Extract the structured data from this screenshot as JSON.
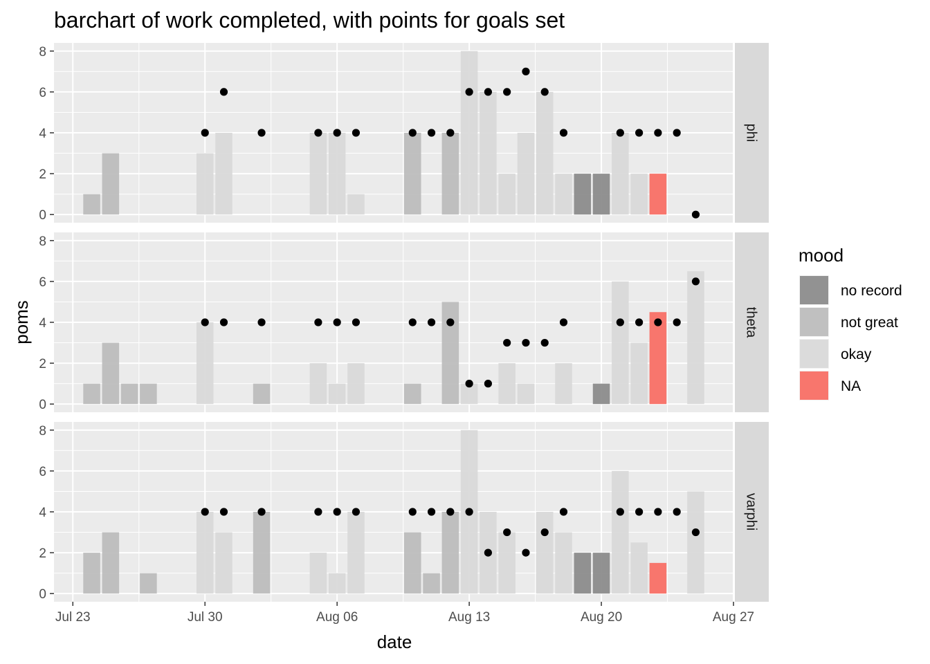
{
  "chart_data": {
    "type": "bar",
    "title": "barchart of work completed, with points for goals set",
    "xlabel": "date",
    "ylabel": "poms",
    "xlim": [
      "2019-07-22",
      "2019-08-27"
    ],
    "ylim": [
      0,
      8
    ],
    "x_ticks": [
      {
        "date": "2019-07-23",
        "label": "Jul 23"
      },
      {
        "date": "2019-07-30",
        "label": "Jul 30"
      },
      {
        "date": "2019-08-06",
        "label": "Aug 06"
      },
      {
        "date": "2019-08-13",
        "label": "Aug 13"
      },
      {
        "date": "2019-08-20",
        "label": "Aug 20"
      },
      {
        "date": "2019-08-27",
        "label": "Aug 27"
      }
    ],
    "y_ticks": [
      0,
      2,
      4,
      6,
      8
    ],
    "bar_series": "work completed (bars, fill = mood)",
    "point_series": "goals set (points)",
    "legend": {
      "title": "mood",
      "position": "right",
      "entries": [
        {
          "key": "no record",
          "label": "no record",
          "color": "#8c8c8c",
          "opacity": 0.95
        },
        {
          "key": "not great",
          "label": "not great",
          "color": "#bdbdbd",
          "opacity": 0.95
        },
        {
          "key": "okay",
          "label": "okay",
          "color": "#d9d9d9",
          "opacity": 0.95
        },
        {
          "key": "NA",
          "label": "NA",
          "color": "#f8766d",
          "opacity": 1
        }
      ]
    },
    "panels": [
      {
        "strip": "phi",
        "bars": [
          {
            "date": "2019-07-24",
            "value": 1,
            "mood": "not great"
          },
          {
            "date": "2019-07-25",
            "value": 3,
            "mood": "not great"
          },
          {
            "date": "2019-07-30",
            "value": 3,
            "mood": "okay"
          },
          {
            "date": "2019-07-31",
            "value": 4,
            "mood": "okay"
          },
          {
            "date": "2019-08-05",
            "value": 4,
            "mood": "okay"
          },
          {
            "date": "2019-08-06",
            "value": 4,
            "mood": "okay"
          },
          {
            "date": "2019-08-07",
            "value": 1,
            "mood": "okay"
          },
          {
            "date": "2019-08-10",
            "value": 4,
            "mood": "not great"
          },
          {
            "date": "2019-08-12",
            "value": 4,
            "mood": "not great"
          },
          {
            "date": "2019-08-13",
            "value": 8,
            "mood": "okay"
          },
          {
            "date": "2019-08-14",
            "value": 6,
            "mood": "okay"
          },
          {
            "date": "2019-08-15",
            "value": 2,
            "mood": "okay"
          },
          {
            "date": "2019-08-16",
            "value": 4,
            "mood": "okay"
          },
          {
            "date": "2019-08-17",
            "value": 6,
            "mood": "okay"
          },
          {
            "date": "2019-08-18",
            "value": 2,
            "mood": "okay"
          },
          {
            "date": "2019-08-19",
            "value": 2,
            "mood": "no record"
          },
          {
            "date": "2019-08-20",
            "value": 2,
            "mood": "no record"
          },
          {
            "date": "2019-08-21",
            "value": 4,
            "mood": "okay"
          },
          {
            "date": "2019-08-22",
            "value": 2,
            "mood": "okay"
          },
          {
            "date": "2019-08-23",
            "value": 2,
            "mood": "NA"
          }
        ],
        "points": [
          {
            "date": "2019-07-30",
            "value": 4
          },
          {
            "date": "2019-07-31",
            "value": 6
          },
          {
            "date": "2019-08-02",
            "value": 4
          },
          {
            "date": "2019-08-05",
            "value": 4
          },
          {
            "date": "2019-08-06",
            "value": 4
          },
          {
            "date": "2019-08-07",
            "value": 4
          },
          {
            "date": "2019-08-10",
            "value": 4
          },
          {
            "date": "2019-08-11",
            "value": 4
          },
          {
            "date": "2019-08-12",
            "value": 4
          },
          {
            "date": "2019-08-13",
            "value": 6
          },
          {
            "date": "2019-08-14",
            "value": 6
          },
          {
            "date": "2019-08-15",
            "value": 6
          },
          {
            "date": "2019-08-16",
            "value": 7
          },
          {
            "date": "2019-08-17",
            "value": 6
          },
          {
            "date": "2019-08-18",
            "value": 4
          },
          {
            "date": "2019-08-21",
            "value": 4
          },
          {
            "date": "2019-08-22",
            "value": 4
          },
          {
            "date": "2019-08-23",
            "value": 4
          },
          {
            "date": "2019-08-24",
            "value": 4
          },
          {
            "date": "2019-08-25",
            "value": 0
          }
        ]
      },
      {
        "strip": "theta",
        "bars": [
          {
            "date": "2019-07-24",
            "value": 1,
            "mood": "not great"
          },
          {
            "date": "2019-07-25",
            "value": 3,
            "mood": "not great"
          },
          {
            "date": "2019-07-26",
            "value": 1,
            "mood": "not great"
          },
          {
            "date": "2019-07-27",
            "value": 1,
            "mood": "not great"
          },
          {
            "date": "2019-07-30",
            "value": 4,
            "mood": "okay"
          },
          {
            "date": "2019-08-02",
            "value": 1,
            "mood": "not great"
          },
          {
            "date": "2019-08-05",
            "value": 2,
            "mood": "okay"
          },
          {
            "date": "2019-08-06",
            "value": 1,
            "mood": "okay"
          },
          {
            "date": "2019-08-07",
            "value": 2,
            "mood": "okay"
          },
          {
            "date": "2019-08-10",
            "value": 1,
            "mood": "not great"
          },
          {
            "date": "2019-08-12",
            "value": 5,
            "mood": "not great"
          },
          {
            "date": "2019-08-13",
            "value": 1,
            "mood": "okay"
          },
          {
            "date": "2019-08-15",
            "value": 2,
            "mood": "okay"
          },
          {
            "date": "2019-08-16",
            "value": 1,
            "mood": "okay"
          },
          {
            "date": "2019-08-18",
            "value": 2,
            "mood": "okay"
          },
          {
            "date": "2019-08-20",
            "value": 1,
            "mood": "no record"
          },
          {
            "date": "2019-08-21",
            "value": 6,
            "mood": "okay"
          },
          {
            "date": "2019-08-22",
            "value": 3,
            "mood": "okay"
          },
          {
            "date": "2019-08-23",
            "value": 4.5,
            "mood": "NA"
          },
          {
            "date": "2019-08-25",
            "value": 6.5,
            "mood": "okay"
          }
        ],
        "points": [
          {
            "date": "2019-07-30",
            "value": 4
          },
          {
            "date": "2019-07-31",
            "value": 4
          },
          {
            "date": "2019-08-02",
            "value": 4
          },
          {
            "date": "2019-08-05",
            "value": 4
          },
          {
            "date": "2019-08-06",
            "value": 4
          },
          {
            "date": "2019-08-07",
            "value": 4
          },
          {
            "date": "2019-08-10",
            "value": 4
          },
          {
            "date": "2019-08-11",
            "value": 4
          },
          {
            "date": "2019-08-12",
            "value": 4
          },
          {
            "date": "2019-08-13",
            "value": 1
          },
          {
            "date": "2019-08-14",
            "value": 1
          },
          {
            "date": "2019-08-15",
            "value": 3
          },
          {
            "date": "2019-08-16",
            "value": 3
          },
          {
            "date": "2019-08-17",
            "value": 3
          },
          {
            "date": "2019-08-18",
            "value": 4
          },
          {
            "date": "2019-08-21",
            "value": 4
          },
          {
            "date": "2019-08-22",
            "value": 4
          },
          {
            "date": "2019-08-23",
            "value": 4
          },
          {
            "date": "2019-08-24",
            "value": 4
          },
          {
            "date": "2019-08-25",
            "value": 6
          }
        ]
      },
      {
        "strip": "varphi",
        "bars": [
          {
            "date": "2019-07-24",
            "value": 2,
            "mood": "not great"
          },
          {
            "date": "2019-07-25",
            "value": 3,
            "mood": "not great"
          },
          {
            "date": "2019-07-27",
            "value": 1,
            "mood": "not great"
          },
          {
            "date": "2019-07-30",
            "value": 4,
            "mood": "okay"
          },
          {
            "date": "2019-07-31",
            "value": 3,
            "mood": "okay"
          },
          {
            "date": "2019-08-02",
            "value": 4,
            "mood": "not great"
          },
          {
            "date": "2019-08-05",
            "value": 2,
            "mood": "okay"
          },
          {
            "date": "2019-08-06",
            "value": 1,
            "mood": "okay"
          },
          {
            "date": "2019-08-07",
            "value": 4,
            "mood": "okay"
          },
          {
            "date": "2019-08-10",
            "value": 3,
            "mood": "not great"
          },
          {
            "date": "2019-08-11",
            "value": 1,
            "mood": "not great"
          },
          {
            "date": "2019-08-12",
            "value": 4,
            "mood": "not great"
          },
          {
            "date": "2019-08-13",
            "value": 8,
            "mood": "okay"
          },
          {
            "date": "2019-08-14",
            "value": 4,
            "mood": "okay"
          },
          {
            "date": "2019-08-15",
            "value": 3,
            "mood": "okay"
          },
          {
            "date": "2019-08-17",
            "value": 4,
            "mood": "okay"
          },
          {
            "date": "2019-08-18",
            "value": 3,
            "mood": "okay"
          },
          {
            "date": "2019-08-19",
            "value": 2,
            "mood": "no record"
          },
          {
            "date": "2019-08-20",
            "value": 2,
            "mood": "no record"
          },
          {
            "date": "2019-08-21",
            "value": 6,
            "mood": "okay"
          },
          {
            "date": "2019-08-22",
            "value": 2.5,
            "mood": "okay"
          },
          {
            "date": "2019-08-23",
            "value": 1.5,
            "mood": "NA"
          },
          {
            "date": "2019-08-25",
            "value": 5,
            "mood": "okay"
          }
        ],
        "points": [
          {
            "date": "2019-07-30",
            "value": 4
          },
          {
            "date": "2019-07-31",
            "value": 4
          },
          {
            "date": "2019-08-02",
            "value": 4
          },
          {
            "date": "2019-08-05",
            "value": 4
          },
          {
            "date": "2019-08-06",
            "value": 4
          },
          {
            "date": "2019-08-07",
            "value": 4
          },
          {
            "date": "2019-08-10",
            "value": 4
          },
          {
            "date": "2019-08-11",
            "value": 4
          },
          {
            "date": "2019-08-12",
            "value": 4
          },
          {
            "date": "2019-08-13",
            "value": 4
          },
          {
            "date": "2019-08-14",
            "value": 2
          },
          {
            "date": "2019-08-15",
            "value": 3
          },
          {
            "date": "2019-08-16",
            "value": 2
          },
          {
            "date": "2019-08-17",
            "value": 3
          },
          {
            "date": "2019-08-18",
            "value": 4
          },
          {
            "date": "2019-08-21",
            "value": 4
          },
          {
            "date": "2019-08-22",
            "value": 4
          },
          {
            "date": "2019-08-23",
            "value": 4
          },
          {
            "date": "2019-08-24",
            "value": 4
          },
          {
            "date": "2019-08-25",
            "value": 3
          }
        ]
      }
    ]
  }
}
